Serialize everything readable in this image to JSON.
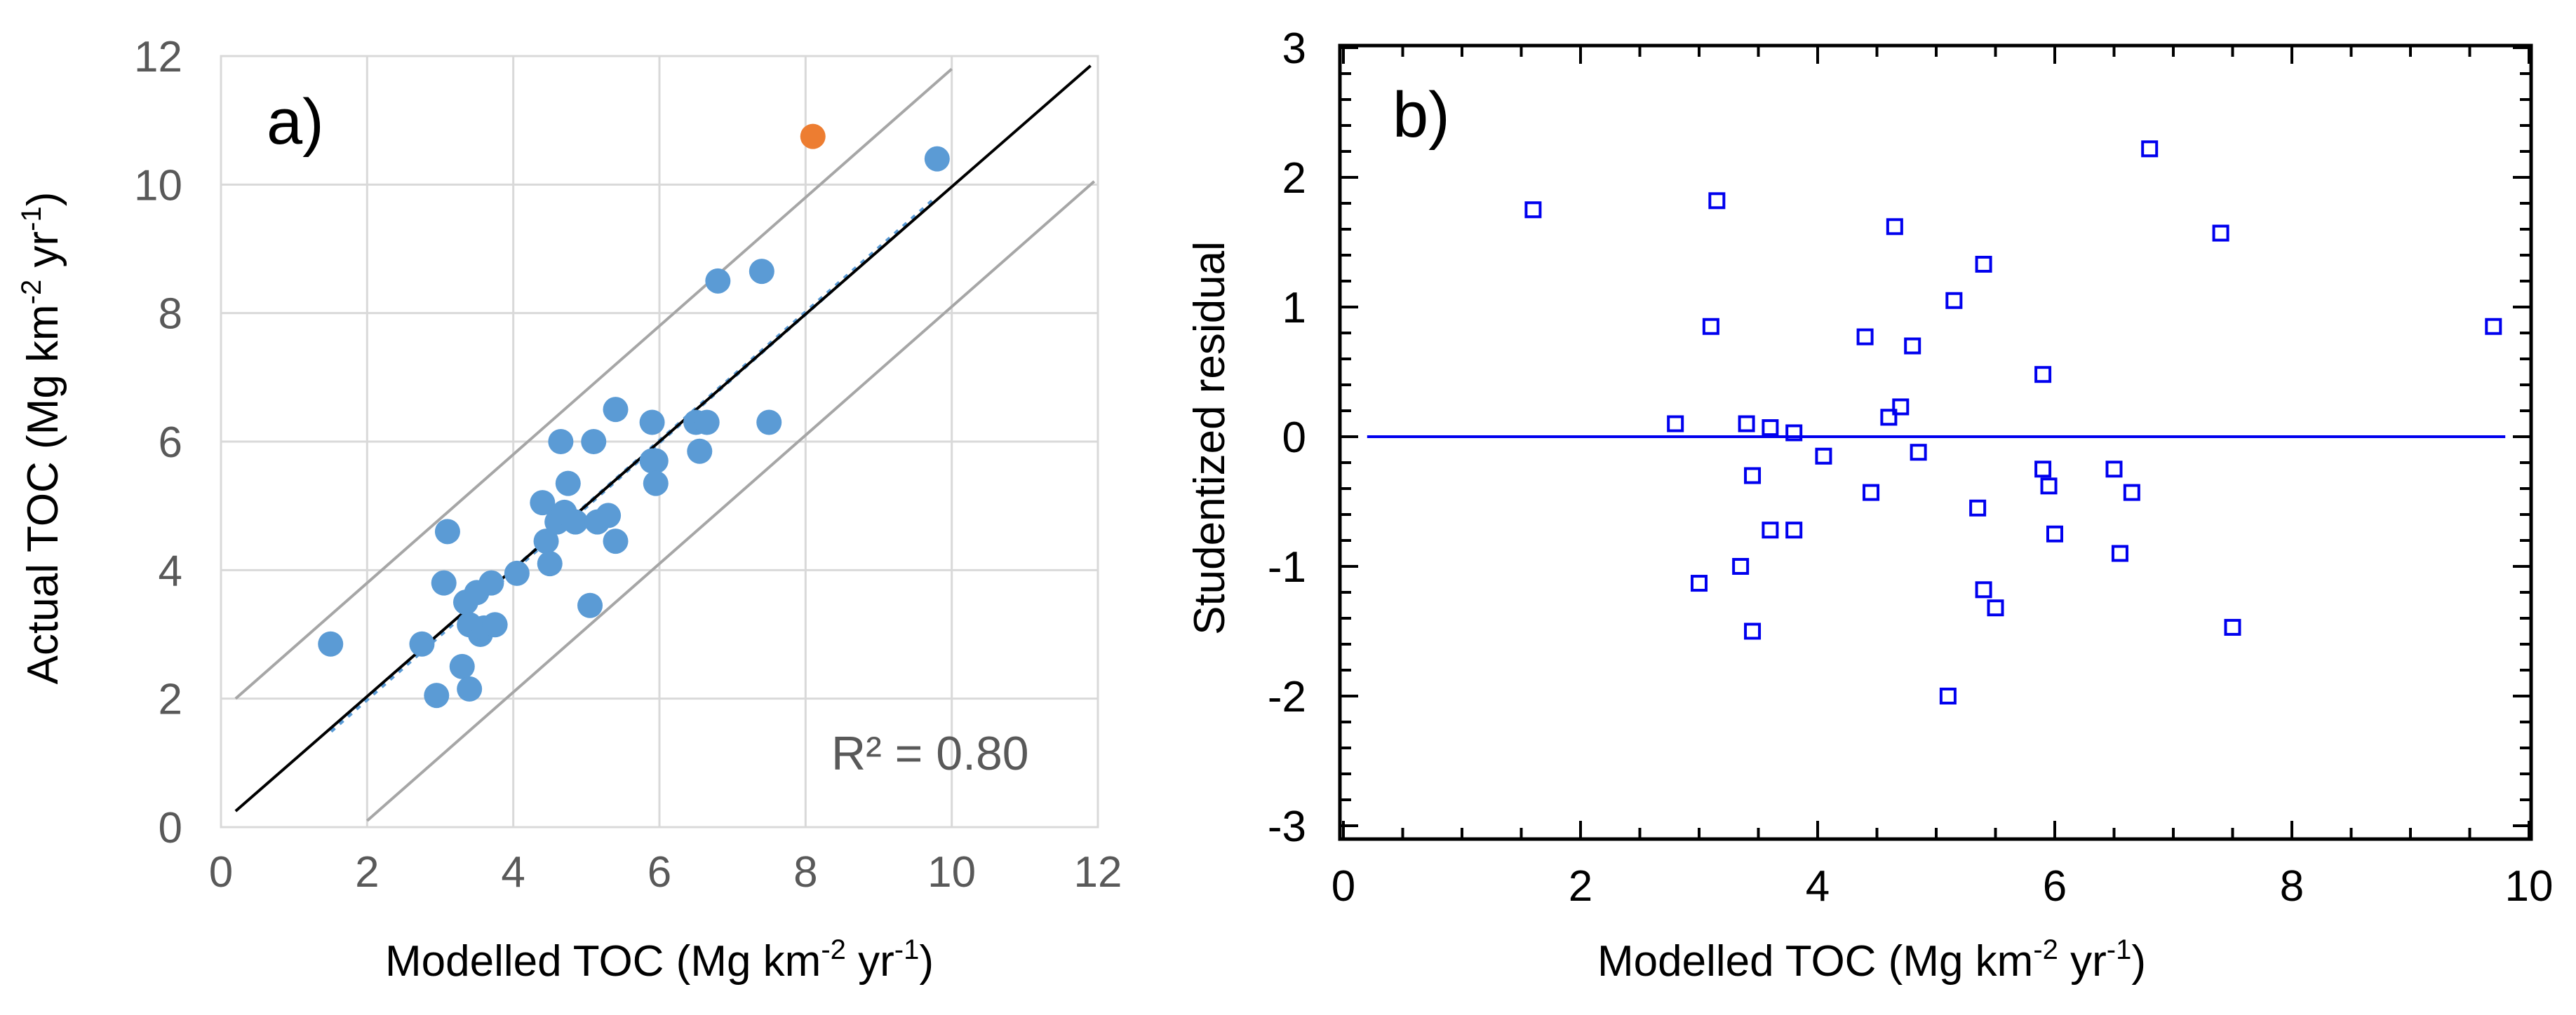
{
  "chart_data": [
    {
      "type": "scatter",
      "panel_label": "a)",
      "xlabel": "Modelled  TOC  (Mg km",
      "xlabel_sup1": "-2",
      "xlabel_mid": " yr",
      "xlabel_sup2": "-1",
      "xlabel_end": ")",
      "ylabel": "Actual TOC  (Mg km",
      "ylabel_sup1": "-2",
      "ylabel_mid": " yr",
      "ylabel_sup2": "-1",
      "ylabel_end": ")",
      "xlim": [
        0,
        12
      ],
      "ylim": [
        0,
        12
      ],
      "xticks": [
        "0",
        "2",
        "4",
        "6",
        "8",
        "10",
        "12"
      ],
      "yticks": [
        "0",
        "2",
        "4",
        "6",
        "8",
        "10",
        "12"
      ],
      "grid": true,
      "annotation": "R² = 0.80",
      "colors": {
        "points": "#5b9bd5",
        "outlier": "#ed7d31",
        "fit": "#000000",
        "bounds": "#a6a6a6",
        "trend": "#5b9bd5",
        "grid": "#d9d9d9"
      },
      "fit_line": {
        "x": [
          0.2,
          11.9
        ],
        "y": [
          0.25,
          11.85
        ]
      },
      "upper_bound": {
        "x": [
          0.2,
          10.0
        ],
        "y": [
          2.0,
          11.8
        ]
      },
      "lower_bound": {
        "x": [
          2.0,
          11.95
        ],
        "y": [
          0.1,
          10.05
        ]
      },
      "trendline": {
        "x": [
          1.5,
          9.8
        ],
        "y": [
          1.5,
          9.8
        ]
      },
      "series": [
        {
          "name": "observations",
          "points": [
            [
              1.5,
              2.85
            ],
            [
              2.75,
              2.85
            ],
            [
              2.95,
              2.05
            ],
            [
              3.05,
              3.8
            ],
            [
              3.1,
              4.6
            ],
            [
              3.3,
              2.5
            ],
            [
              3.35,
              3.5
            ],
            [
              3.4,
              3.15
            ],
            [
              3.4,
              2.15
            ],
            [
              3.5,
              3.65
            ],
            [
              3.55,
              3.0
            ],
            [
              3.6,
              3.1
            ],
            [
              3.7,
              3.8
            ],
            [
              3.75,
              3.15
            ],
            [
              4.05,
              3.95
            ],
            [
              4.4,
              5.05
            ],
            [
              4.45,
              4.45
            ],
            [
              4.5,
              4.1
            ],
            [
              4.6,
              4.75
            ],
            [
              4.65,
              6.0
            ],
            [
              4.7,
              4.9
            ],
            [
              4.75,
              5.35
            ],
            [
              4.85,
              4.75
            ],
            [
              5.05,
              3.45
            ],
            [
              5.1,
              6.0
            ],
            [
              5.15,
              4.75
            ],
            [
              5.3,
              4.85
            ],
            [
              5.4,
              6.5
            ],
            [
              5.4,
              4.45
            ],
            [
              5.9,
              6.3
            ],
            [
              5.9,
              5.7
            ],
            [
              5.95,
              5.7
            ],
            [
              5.95,
              5.35
            ],
            [
              6.5,
              6.3
            ],
            [
              6.55,
              5.85
            ],
            [
              6.65,
              6.3
            ],
            [
              6.8,
              8.5
            ],
            [
              7.4,
              8.65
            ],
            [
              7.5,
              6.3
            ],
            [
              9.8,
              10.4
            ]
          ]
        },
        {
          "name": "outlier",
          "points": [
            [
              8.1,
              10.75
            ]
          ]
        }
      ]
    },
    {
      "type": "scatter",
      "panel_label": "b)",
      "xlabel": "Modelled  TOC  (Mg km",
      "xlabel_sup1": "-2",
      "xlabel_mid": " yr",
      "xlabel_sup2": "-1",
      "xlabel_end": ")",
      "ylabel": "Studentized residual",
      "xlim": [
        0,
        10
      ],
      "ylim": [
        -3,
        3
      ],
      "xticks": [
        "0",
        "2",
        "4",
        "6",
        "8",
        "10"
      ],
      "yticks": [
        "-3",
        "-2",
        "-1",
        "0",
        "1",
        "2",
        "3"
      ],
      "grid": false,
      "colors": {
        "points": "#0000ee",
        "zero_line": "#0000ee",
        "axes": "#000000"
      },
      "zero_line": {
        "x": [
          0.2,
          9.8
        ],
        "y": [
          0,
          0
        ]
      },
      "series": [
        {
          "name": "residuals",
          "points": [
            [
              1.6,
              1.75
            ],
            [
              2.8,
              0.1
            ],
            [
              3.0,
              -1.13
            ],
            [
              3.1,
              0.85
            ],
            [
              3.15,
              1.82
            ],
            [
              3.35,
              -1.0
            ],
            [
              3.4,
              0.1
            ],
            [
              3.45,
              -0.3
            ],
            [
              3.45,
              -1.5
            ],
            [
              3.6,
              0.07
            ],
            [
              3.6,
              -0.72
            ],
            [
              3.8,
              0.03
            ],
            [
              3.8,
              -0.72
            ],
            [
              4.05,
              -0.15
            ],
            [
              4.4,
              0.77
            ],
            [
              4.45,
              -0.43
            ],
            [
              4.6,
              0.15
            ],
            [
              4.65,
              1.62
            ],
            [
              4.7,
              0.23
            ],
            [
              4.8,
              0.7
            ],
            [
              4.85,
              -0.12
            ],
            [
              5.1,
              -2.0
            ],
            [
              5.15,
              1.05
            ],
            [
              5.35,
              -0.55
            ],
            [
              5.4,
              1.33
            ],
            [
              5.4,
              -1.18
            ],
            [
              5.5,
              -1.32
            ],
            [
              5.9,
              0.48
            ],
            [
              5.9,
              -0.25
            ],
            [
              5.95,
              -0.38
            ],
            [
              6.0,
              -0.75
            ],
            [
              6.5,
              -0.25
            ],
            [
              6.55,
              -0.9
            ],
            [
              6.65,
              -0.43
            ],
            [
              6.8,
              2.22
            ],
            [
              7.4,
              1.57
            ],
            [
              7.5,
              -1.47
            ],
            [
              9.7,
              0.85
            ]
          ]
        }
      ]
    }
  ]
}
